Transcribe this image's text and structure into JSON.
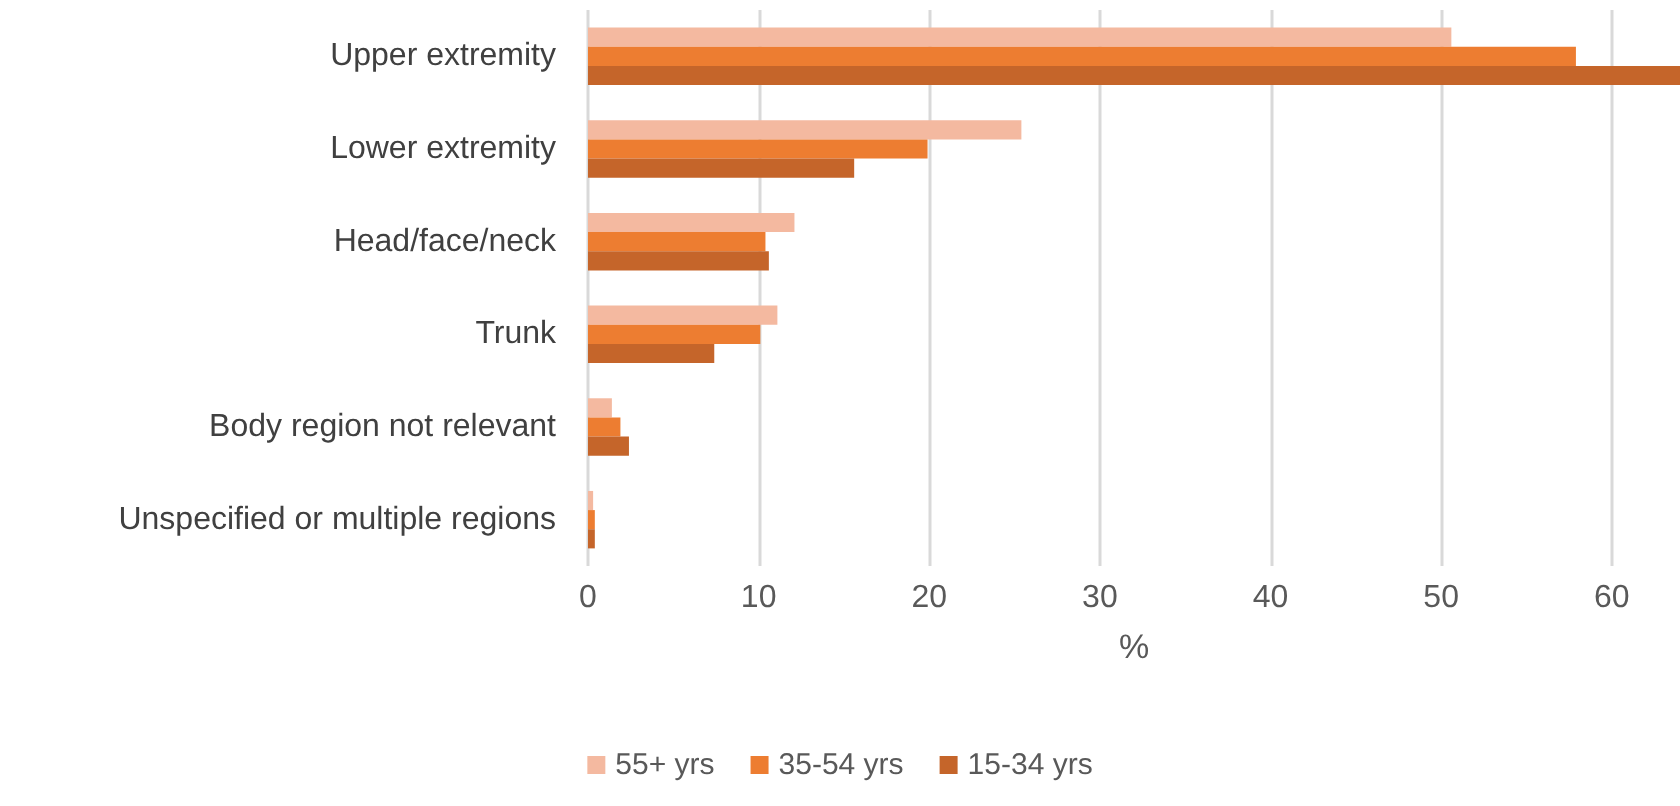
{
  "chart_data": {
    "type": "bar",
    "orientation": "horizontal",
    "xlabel": "%",
    "categories": [
      "Upper extremity",
      "Lower extremity",
      "Head/face/neck",
      "Trunk",
      "Body region not relevant",
      "Unspecified or multiple regions"
    ],
    "series": [
      {
        "name": "55+ yrs",
        "color": "#f4b9a0",
        "values": [
          50.6,
          25.4,
          12.1,
          11.1,
          1.4,
          0.3
        ]
      },
      {
        "name": "35-54 yrs",
        "color": "#ed7d31",
        "values": [
          57.9,
          19.9,
          10.4,
          10.1,
          1.9,
          0.4
        ]
      },
      {
        "name": "15-34 yrs",
        "color": "#c5652a",
        "values": [
          64,
          15.6,
          10.6,
          7.4,
          2.4,
          0.4
        ]
      }
    ],
    "xlim": [
      0,
      64
    ],
    "xticks": [
      0,
      10,
      20,
      30,
      40,
      50,
      60
    ],
    "grid": "x",
    "legend": "bottom"
  }
}
